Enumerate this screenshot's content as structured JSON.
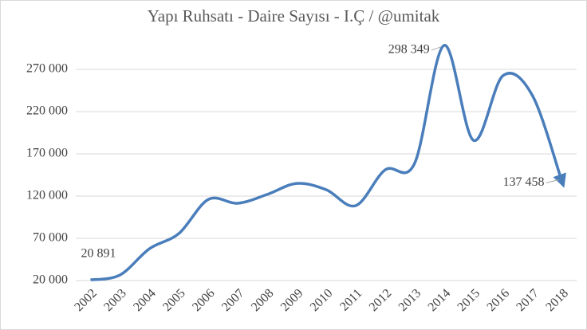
{
  "chart_data": {
    "type": "line",
    "title": "Yapı Ruhsatı - Daire Sayısı - I.Ç / @umitak",
    "categories": [
      "2002",
      "2003",
      "2004",
      "2005",
      "2006",
      "2007",
      "2008",
      "2009",
      "2010",
      "2011",
      "2012",
      "2013",
      "2014",
      "2015",
      "2016",
      "2017",
      "2018"
    ],
    "values": [
      20891,
      26600,
      57700,
      75700,
      116000,
      111500,
      122000,
      135000,
      127500,
      108700,
      151000,
      158700,
      298349,
      186000,
      262500,
      239000,
      137458
    ],
    "value_labels": [
      "20 891",
      null,
      null,
      null,
      null,
      null,
      null,
      null,
      null,
      null,
      null,
      null,
      "298 349",
      null,
      null,
      null,
      "137 458"
    ],
    "color": "#4a7ebb",
    "ylim": [
      20000,
      320000
    ],
    "yticks": [
      {
        "value": 20000,
        "label": "20 000"
      },
      {
        "value": 70000,
        "label": "70 000"
      },
      {
        "value": 120000,
        "label": "120 000"
      },
      {
        "value": 170000,
        "label": "170 000"
      },
      {
        "value": 220000,
        "label": "220 000"
      },
      {
        "value": 270000,
        "label": "270 000"
      }
    ],
    "grid": true,
    "smooth": true
  }
}
